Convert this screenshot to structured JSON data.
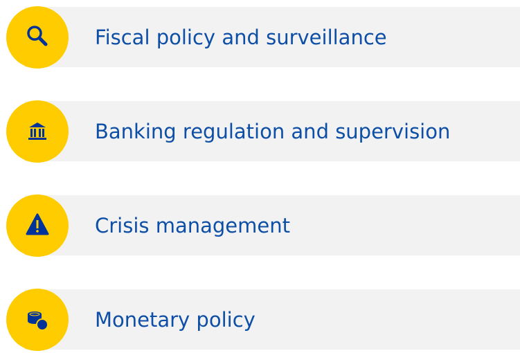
{
  "items": [
    {
      "label": "Fiscal policy and surveillance"
    },
    {
      "label": "Banking regulation and supervision"
    },
    {
      "label": "Crisis management"
    },
    {
      "label": "Monetary policy"
    }
  ]
}
